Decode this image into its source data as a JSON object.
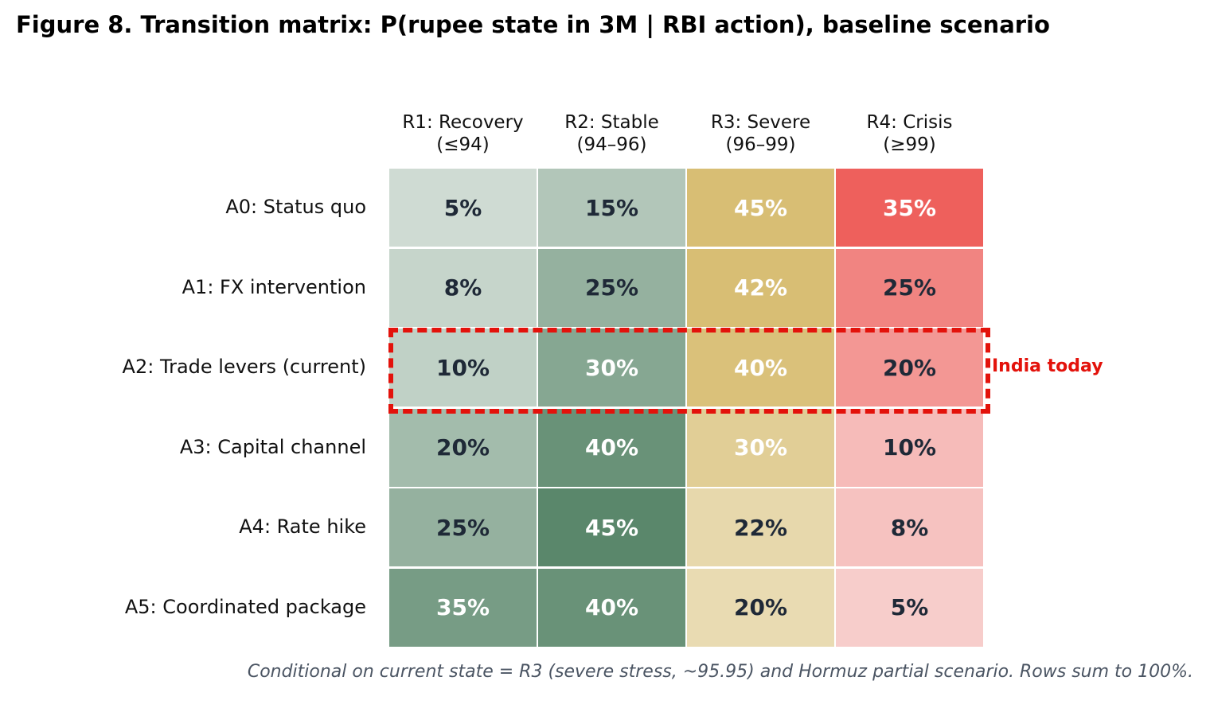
{
  "chart_data": {
    "type": "heatmap",
    "title": "Figure 8. Transition matrix: P(rupee state in 3M | RBI action), baseline scenario",
    "columns": [
      {
        "line1": "R1: Recovery",
        "line2": "(≤94)"
      },
      {
        "line1": "R2: Stable",
        "line2": "(94–96)"
      },
      {
        "line1": "R3: Severe",
        "line2": "(96–99)"
      },
      {
        "line1": "R4: Crisis",
        "line2": "(≥99)"
      }
    ],
    "rows": [
      "A0: Status quo",
      "A1: FX intervention",
      "A2: Trade levers (current)",
      "A3: Capital channel",
      "A4: Rate hike",
      "A5: Coordinated package"
    ],
    "values": [
      [
        5,
        15,
        45,
        35
      ],
      [
        8,
        25,
        42,
        25
      ],
      [
        10,
        30,
        40,
        20
      ],
      [
        20,
        40,
        30,
        10
      ],
      [
        25,
        45,
        22,
        8
      ],
      [
        35,
        40,
        20,
        5
      ]
    ],
    "value_suffix": "%",
    "highlight": {
      "row_index": 2,
      "label": "India today",
      "color": "#e3120b"
    },
    "footnote": "Conditional on current state = R3 (severe stress, ~95.95) and Hormuz partial scenario. Rows sum to 100%.",
    "colors": {
      "green_light": "#cfdbd3",
      "green_dark": "#5a876b",
      "gold_light": "#e9dbb2",
      "gold_dark": "#d8be74",
      "red_light": "#f7cdcb",
      "red_dark": "#ee605c",
      "text_dark": "#1f2937",
      "text_light": "#ffffff"
    }
  }
}
